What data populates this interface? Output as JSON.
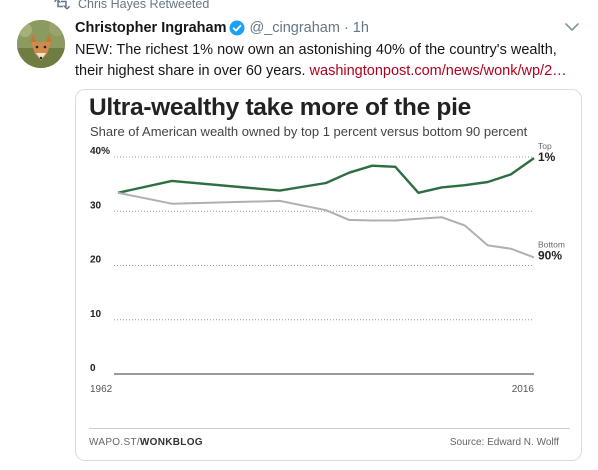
{
  "retweet": {
    "icon": "retweet-icon",
    "text": "Chris Hayes Retweeted"
  },
  "tweet": {
    "avatar_icon": "fox-avatar",
    "name": "Christopher Ingraham",
    "verified_icon": "verified-badge-icon",
    "handle": "@_cingraham",
    "separator": "·",
    "time": "1h",
    "text": "NEW: The richest 1% now own an astonishing 40% of the country's wealth, their highest share in over 60 years.",
    "link": "washingtonpost.com/news/wonk/wp/2…",
    "caret_icon": "chevron-down-icon",
    "colors": {
      "link": "#b2001e",
      "verified": "#1da1f2",
      "secondary_text": "#657786"
    }
  },
  "card": {
    "title": "Ultra-wealthy take more of the pie",
    "subtitle": "Share of American wealth owned by top 1 percent versus bottom 90 percent",
    "footer_left_prefix": "WAPO.ST/",
    "footer_left_brand": "WONKBLOG",
    "footer_right": "Source: Edward N. Wolff"
  },
  "chart_data": {
    "type": "line",
    "title": "Ultra-wealthy take more of the pie",
    "subtitle": "Share of American wealth owned by top 1 percent versus bottom 90 percent",
    "xlim": [
      1962,
      2016
    ],
    "ylim": [
      0,
      40
    ],
    "x_tick_labels": [
      "1962",
      "2016"
    ],
    "y_ticks": [
      {
        "value": 40,
        "label": "40%"
      },
      {
        "value": 30,
        "label": "30"
      },
      {
        "value": 20,
        "label": "20"
      },
      {
        "value": 10,
        "label": "10"
      },
      {
        "value": 0,
        "label": "0"
      }
    ],
    "grid": "horizontal dotted",
    "series": [
      {
        "name_small": "Top",
        "name_big": "1%",
        "color": "#2e6e42",
        "x": [
          1962,
          1969,
          1983,
          1989,
          1992,
          1995,
          1998,
          2001,
          2004,
          2007,
          2010,
          2013,
          2016
        ],
        "y": [
          33.4,
          35.6,
          33.8,
          35.2,
          37.1,
          38.4,
          38.2,
          33.4,
          34.4,
          34.8,
          35.4,
          36.8,
          39.8
        ]
      },
      {
        "name_small": "Bottom",
        "name_big": "90%",
        "color": "#b0b0b0",
        "x": [
          1962,
          1969,
          1983,
          1989,
          1992,
          1995,
          1998,
          2001,
          2004,
          2007,
          2010,
          2013,
          2016
        ],
        "y": [
          33.4,
          31.4,
          31.9,
          30.2,
          28.4,
          28.3,
          28.3,
          28.6,
          28.9,
          27.4,
          23.7,
          23.1,
          21.5
        ]
      }
    ]
  }
}
